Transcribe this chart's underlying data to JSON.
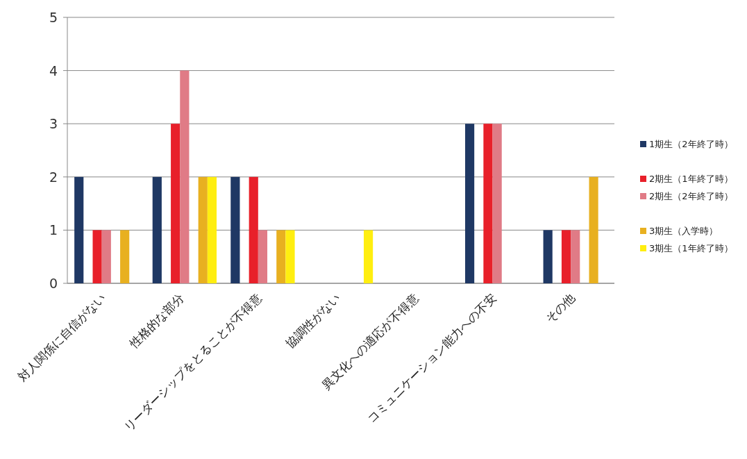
{
  "chart_data": {
    "type": "bar",
    "categories": [
      "対人関係に自信がない",
      "性格的な部分",
      "リーダーシップをとることが不得意",
      "協調性がない",
      "異文化への適応が不得意",
      "コミュニケーション能力への不安",
      "その他"
    ],
    "series": [
      {
        "name": "1期生（2年終了時）",
        "color": "#1f3864",
        "values": [
          2,
          2,
          2,
          0,
          0,
          3,
          1
        ]
      },
      {
        "values": [
          null,
          null,
          null,
          null,
          null,
          null,
          null
        ]
      },
      {
        "name": "2期生（1年終了時）",
        "color": "#e8202a",
        "values": [
          1,
          3,
          2,
          0,
          0,
          3,
          1
        ]
      },
      {
        "name": "2期生（2年終了時）",
        "color": "#e07b86",
        "values": [
          1,
          4,
          1,
          0,
          0,
          3,
          1
        ]
      },
      {
        "values": [
          null,
          null,
          null,
          null,
          null,
          null,
          null
        ]
      },
      {
        "name": "3期生（入学時）",
        "color": "#e8b020",
        "values": [
          1,
          2,
          1,
          0,
          0,
          0,
          2
        ]
      },
      {
        "name": "3期生（1年終了時）",
        "color": "#ffee10",
        "values": [
          0,
          2,
          1,
          1,
          0,
          0,
          0
        ]
      }
    ],
    "ylim": [
      0,
      5
    ],
    "yticks": [
      0,
      1,
      2,
      3,
      4,
      5
    ],
    "grid": "y",
    "legend": "right"
  }
}
